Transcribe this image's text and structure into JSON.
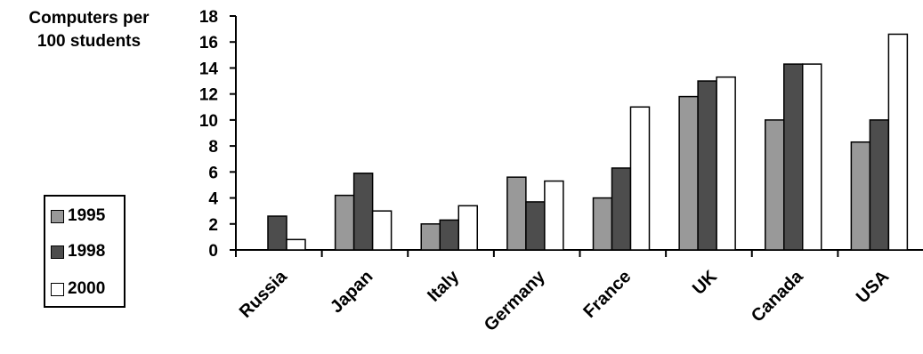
{
  "chart_data": {
    "type": "bar",
    "ylabel_line1": "Computers per",
    "ylabel_line2": "100 students",
    "xlabel": "",
    "ylim": [
      0,
      18
    ],
    "yticks": [
      "0",
      "2",
      "4",
      "6",
      "8",
      "10",
      "12",
      "14",
      "16",
      "18"
    ],
    "grid": false,
    "legend_position": "left",
    "categories": [
      "Russia",
      "Japan",
      "Italy",
      "Germany",
      "France",
      "UK",
      "Canada",
      "USA"
    ],
    "series": [
      {
        "name": "1995",
        "color": "#999999",
        "values": [
          null,
          4.2,
          2.0,
          5.6,
          4.0,
          11.8,
          10.0,
          8.3
        ]
      },
      {
        "name": "1998",
        "color": "#4d4d4d",
        "values": [
          2.6,
          5.9,
          2.3,
          3.7,
          6.3,
          13.0,
          14.3,
          10.0
        ]
      },
      {
        "name": "2000",
        "color": "#ffffff",
        "values": [
          0.8,
          3.0,
          3.4,
          5.3,
          11.0,
          13.3,
          14.3,
          16.6
        ]
      }
    ]
  }
}
